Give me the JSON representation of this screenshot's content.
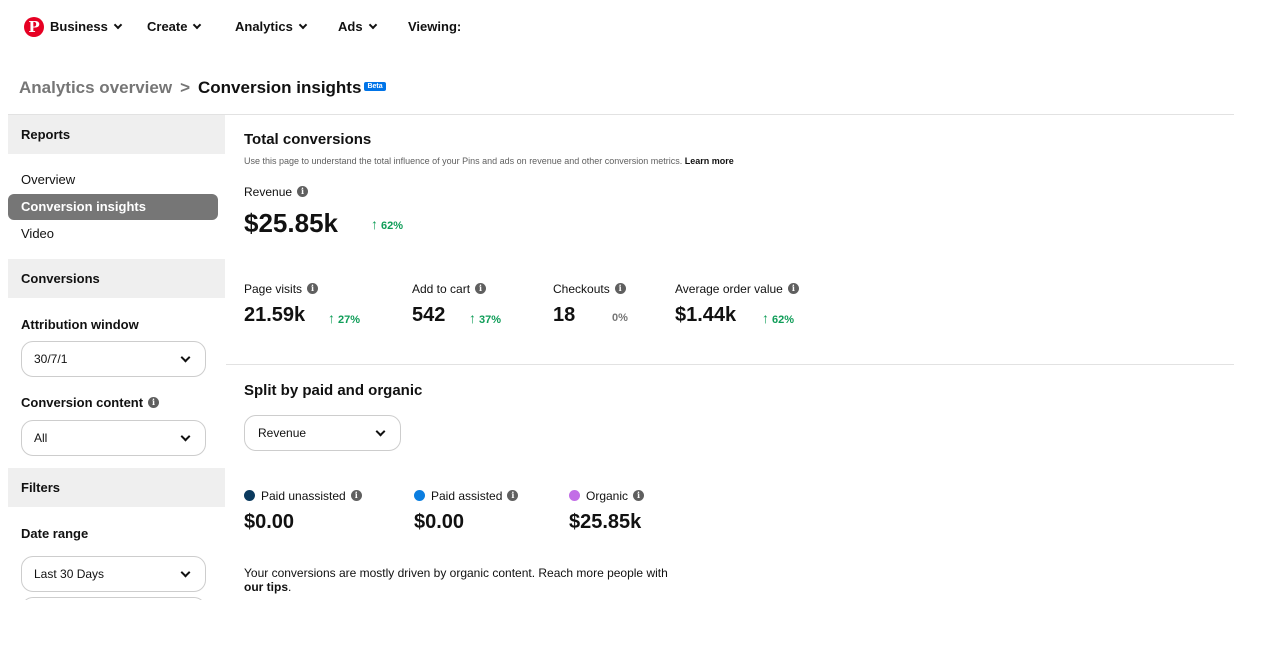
{
  "nav": {
    "logo_icon": "pinterest-logo",
    "items": [
      {
        "label": "Business",
        "has_dropdown": true
      },
      {
        "label": "Create",
        "has_dropdown": true
      },
      {
        "label": "Analytics",
        "has_dropdown": true
      },
      {
        "label": "Ads",
        "has_dropdown": true
      },
      {
        "label": "Viewing:",
        "has_dropdown": false
      }
    ]
  },
  "breadcrumb": {
    "parent": "Analytics overview",
    "separator": ">",
    "current": "Conversion insights",
    "badge": "Beta"
  },
  "sidebar": {
    "reports_header": "Reports",
    "links": [
      "Overview",
      "Conversion insights",
      "Video"
    ],
    "active_link": "Conversion insights",
    "conversions_header": "Conversions",
    "attribution_label": "Attribution window",
    "attribution_value": "30/7/1",
    "content_label": "Conversion content",
    "content_value": "All",
    "filters_header": "Filters",
    "date_label": "Date range",
    "date_value": "Last 30 Days"
  },
  "main": {
    "title": "Total conversions",
    "description": "Use this page to understand the total influence of your Pins and ads on revenue and other conversion metrics.",
    "learn_more": "Learn more",
    "revenue": {
      "label": "Revenue",
      "value": "$25.85k",
      "change": "62%",
      "direction": "up"
    },
    "metrics": [
      {
        "label": "Page visits",
        "value": "21.59k",
        "change": "27%",
        "direction": "up"
      },
      {
        "label": "Add to cart",
        "value": "542",
        "change": "37%",
        "direction": "up"
      },
      {
        "label": "Checkouts",
        "value": "18",
        "change": "0%",
        "direction": "none"
      },
      {
        "label": "Average order value",
        "value": "$1.44k",
        "change": "62%",
        "direction": "up"
      }
    ],
    "arrow_up": "↑",
    "split": {
      "title": "Split by paid and organic",
      "dropdown_value": "Revenue",
      "categories": [
        {
          "label": "Paid unassisted",
          "value": "$0.00",
          "color": "#0b3a5e"
        },
        {
          "label": "Paid assisted",
          "value": "$0.00",
          "color": "#0b7ee0"
        },
        {
          "label": "Organic",
          "value": "$25.85k",
          "color": "#c26ee6"
        }
      ],
      "note": "Your conversions are mostly driven by organic content. Reach more people with",
      "note_link": "our tips",
      "note_end": "."
    }
  },
  "colors": {
    "accent": "#e60023",
    "positive": "#0f9d58",
    "active_bg": "#767676"
  }
}
